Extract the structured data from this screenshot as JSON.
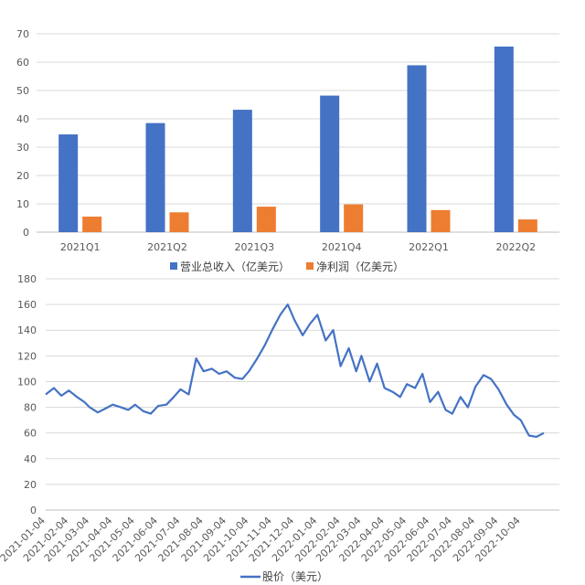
{
  "chart_data": [
    {
      "type": "bar",
      "categories": [
        "2021Q1",
        "2021Q2",
        "2021Q3",
        "2021Q4",
        "2022Q1",
        "2022Q2"
      ],
      "series": [
        {
          "name": "营业总收入（亿美元）",
          "color": "#4472c4",
          "values": [
            34.5,
            38.5,
            43.2,
            48.2,
            58.9,
            65.5
          ]
        },
        {
          "name": "净利润（亿美元）",
          "color": "#ed7d31",
          "values": [
            5.5,
            7.0,
            9.0,
            9.8,
            7.8,
            4.5
          ]
        }
      ],
      "yticks": [
        "0",
        "10",
        "20",
        "30",
        "40",
        "50",
        "60",
        "70"
      ],
      "ylim": [
        0,
        70
      ],
      "grid": true,
      "legend": "bottom"
    },
    {
      "type": "line",
      "series": [
        {
          "name": "股价（美元）",
          "color": "#4472c4"
        }
      ],
      "xticks": [
        "2021-01-04",
        "2021-02-04",
        "2021-03-04",
        "2021-04-04",
        "2021-05-04",
        "2021-06-04",
        "2021-07-04",
        "2021-08-04",
        "2021-09-04",
        "2021-10-04",
        "2021-11-04",
        "2021-12-04",
        "2022-01-04",
        "2022-02-04",
        "2022-03-04",
        "2022-04-04",
        "2022-05-04",
        "2022-06-04",
        "2022-07-04",
        "2022-08-04",
        "2022-09-04",
        "2022-10-04"
      ],
      "x": [
        "2021-01-04",
        "2021-01-15",
        "2021-01-25",
        "2021-02-04",
        "2021-02-15",
        "2021-02-25",
        "2021-03-04",
        "2021-03-15",
        "2021-03-25",
        "2021-04-04",
        "2021-04-15",
        "2021-04-25",
        "2021-05-04",
        "2021-05-15",
        "2021-05-25",
        "2021-06-04",
        "2021-06-15",
        "2021-06-25",
        "2021-07-04",
        "2021-07-15",
        "2021-07-25",
        "2021-08-04",
        "2021-08-15",
        "2021-08-25",
        "2021-09-04",
        "2021-09-15",
        "2021-09-25",
        "2021-10-04",
        "2021-10-15",
        "2021-10-25",
        "2021-11-04",
        "2021-11-15",
        "2021-11-25",
        "2021-12-04",
        "2021-12-15",
        "2021-12-25",
        "2022-01-04",
        "2022-01-15",
        "2022-01-25",
        "2022-02-04",
        "2022-02-15",
        "2022-02-25",
        "2022-03-04",
        "2022-03-15",
        "2022-03-25",
        "2022-04-04",
        "2022-04-15",
        "2022-04-25",
        "2022-05-04",
        "2022-05-15",
        "2022-05-25",
        "2022-06-04",
        "2022-06-15",
        "2022-06-25",
        "2022-07-04",
        "2022-07-15",
        "2022-07-25",
        "2022-08-04",
        "2022-08-15",
        "2022-08-25",
        "2022-09-04",
        "2022-09-15",
        "2022-09-25",
        "2022-10-04",
        "2022-10-15",
        "2022-10-25",
        "2022-11-04"
      ],
      "values": [
        90,
        95,
        89,
        93,
        88,
        84,
        80,
        76,
        79,
        82,
        80,
        78,
        82,
        77,
        75,
        81,
        82,
        88,
        94,
        90,
        118,
        108,
        110,
        106,
        108,
        103,
        102,
        108,
        118,
        128,
        140,
        152,
        160,
        148,
        136,
        145,
        152,
        132,
        140,
        112,
        126,
        108,
        120,
        100,
        114,
        95,
        92,
        88,
        98,
        95,
        106,
        84,
        92,
        78,
        75,
        88,
        80,
        96,
        105,
        102,
        94,
        82,
        74,
        70,
        58,
        57,
        60
      ],
      "yticks": [
        "0",
        "20",
        "40",
        "60",
        "80",
        "100",
        "120",
        "140",
        "160",
        "180"
      ],
      "ylim": [
        0,
        180
      ],
      "grid": true,
      "legend": "bottom"
    }
  ]
}
